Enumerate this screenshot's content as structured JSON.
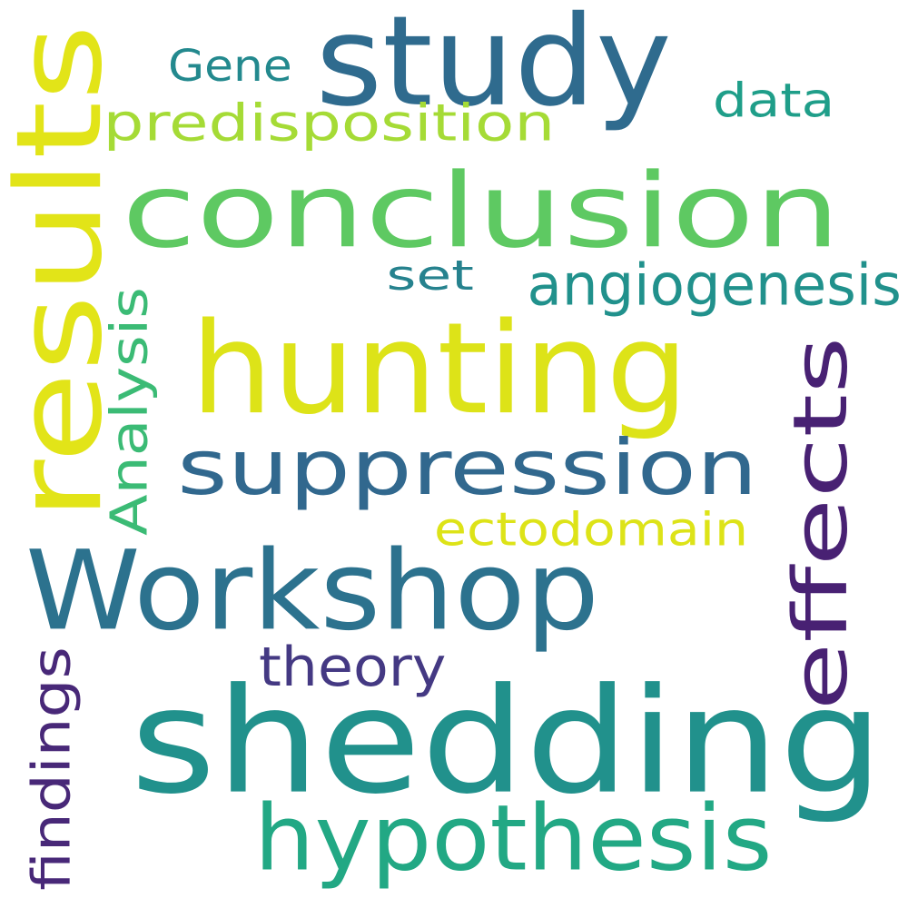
{
  "cloud": {
    "words": [
      {
        "key": "shedding",
        "text": "shedding",
        "color": "#21918c",
        "orientation": "horizontal"
      },
      {
        "key": "hunting",
        "text": "hunting",
        "color": "#dde318",
        "orientation": "horizontal"
      },
      {
        "key": "conclusion",
        "text": "conclusion",
        "color": "#5ec962",
        "orientation": "horizontal"
      },
      {
        "key": "workshop",
        "text": "Workshop",
        "color": "#2c728e",
        "orientation": "horizontal"
      },
      {
        "key": "results",
        "text": "results",
        "color": "#e2e418",
        "orientation": "vertical"
      },
      {
        "key": "study",
        "text": "study",
        "color": "#2f6b8e",
        "orientation": "horizontal"
      },
      {
        "key": "effects",
        "text": "effects",
        "color": "#482173",
        "orientation": "vertical"
      },
      {
        "key": "suppression",
        "text": "suppression",
        "color": "#31688e",
        "orientation": "horizontal"
      },
      {
        "key": "hypothesis",
        "text": "hypothesis",
        "color": "#22a884",
        "orientation": "horizontal"
      },
      {
        "key": "predisposition",
        "text": "predisposition",
        "color": "#a5db36",
        "orientation": "horizontal"
      },
      {
        "key": "angiogenesis",
        "text": "angiogenesis",
        "color": "#21918c",
        "orientation": "horizontal"
      },
      {
        "key": "ectodomain",
        "text": "ectodomain",
        "color": "#dde318",
        "orientation": "horizontal"
      },
      {
        "key": "theory",
        "text": "theory",
        "color": "#443983",
        "orientation": "horizontal"
      },
      {
        "key": "analysis",
        "text": "Analysis",
        "color": "#3bbb75",
        "orientation": "vertical"
      },
      {
        "key": "findings",
        "text": "findings",
        "color": "#482878",
        "orientation": "vertical"
      },
      {
        "key": "gene",
        "text": "Gene",
        "color": "#23898e",
        "orientation": "horizontal"
      },
      {
        "key": "data",
        "text": "data",
        "color": "#1f9e89",
        "orientation": "horizontal"
      },
      {
        "key": "set",
        "text": "set",
        "color": "#26828e",
        "orientation": "horizontal"
      }
    ]
  }
}
